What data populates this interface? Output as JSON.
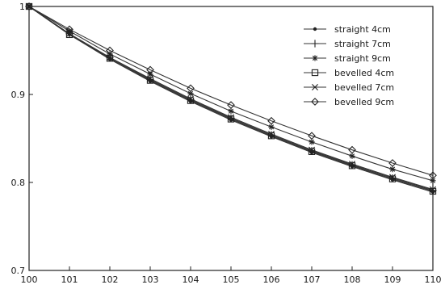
{
  "chart_data": {
    "type": "line",
    "title": "",
    "xlabel": "",
    "ylabel": "",
    "x": [
      100,
      101,
      102,
      103,
      104,
      105,
      106,
      107,
      108,
      109,
      110
    ],
    "xlim": [
      100,
      110
    ],
    "ylim": [
      0.7,
      1.0
    ],
    "x_tick_labels": [
      "100",
      "101",
      "102",
      "103",
      "104",
      "105",
      "106",
      "107",
      "108",
      "109",
      "110"
    ],
    "y_ticks": [
      0.7,
      0.8,
      0.9,
      1.0
    ],
    "y_tick_labels": [
      "0.7",
      "0.8",
      "0.9",
      "1"
    ],
    "grid": false,
    "legend_position": "top-right",
    "series": [
      {
        "name": "straight 4cm",
        "marker": "dot",
        "values": [
          1.0,
          0.968,
          0.94,
          0.915,
          0.892,
          0.871,
          0.852,
          0.834,
          0.818,
          0.803,
          0.789
        ]
      },
      {
        "name": "straight 7cm",
        "marker": "plus",
        "values": [
          1.0,
          0.969,
          0.942,
          0.917,
          0.894,
          0.873,
          0.854,
          0.836,
          0.82,
          0.805,
          0.791
        ]
      },
      {
        "name": "straight 9cm",
        "marker": "asterisk",
        "values": [
          1.0,
          0.972,
          0.946,
          0.923,
          0.901,
          0.881,
          0.863,
          0.846,
          0.83,
          0.815,
          0.802
        ]
      },
      {
        "name": "bevelled 4cm",
        "marker": "square",
        "values": [
          1.0,
          0.968,
          0.941,
          0.916,
          0.893,
          0.872,
          0.853,
          0.835,
          0.819,
          0.804,
          0.79
        ]
      },
      {
        "name": "bevelled 7cm",
        "marker": "x",
        "values": [
          1.0,
          0.969,
          0.942,
          0.918,
          0.895,
          0.874,
          0.855,
          0.837,
          0.821,
          0.806,
          0.792
        ]
      },
      {
        "name": "bevelled 9cm",
        "marker": "diamond",
        "values": [
          1.0,
          0.974,
          0.95,
          0.928,
          0.907,
          0.888,
          0.87,
          0.853,
          0.837,
          0.822,
          0.808
        ]
      }
    ]
  }
}
